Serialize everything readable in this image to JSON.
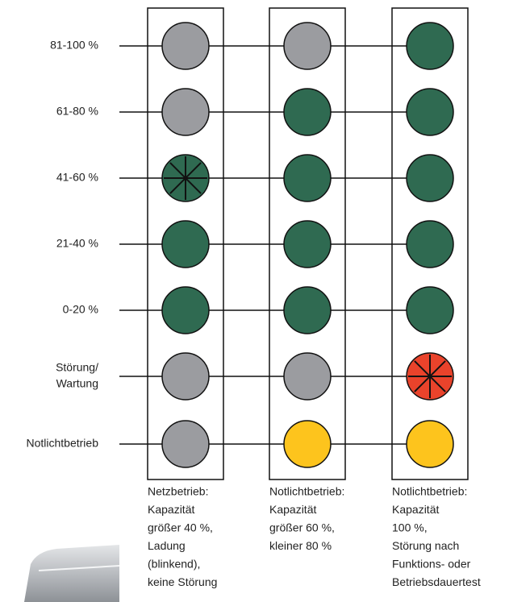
{
  "rows": [
    [
      "81-100 %"
    ],
    [
      "61-80 %"
    ],
    [
      "41-60 %"
    ],
    [
      "21-40 %"
    ],
    [
      "0-20 %"
    ],
    [
      "Störung/",
      "Wartung"
    ],
    [
      "Notlichtbetrieb"
    ]
  ],
  "columns": [
    {
      "lamps": [
        "#9b9ca0",
        "#9b9ca0",
        "#2f6a51",
        "#2f6a51",
        "#2f6a51",
        "#9b9ca0",
        "#9b9ca0"
      ],
      "blinking": [
        2
      ],
      "caption": [
        "Netzbetrieb:",
        "Kapazität",
        "größer 40 %,",
        "Ladung",
        "(blinkend),",
        "keine Störung"
      ]
    },
    {
      "lamps": [
        "#9b9ca0",
        "#2f6a51",
        "#2f6a51",
        "#2f6a51",
        "#2f6a51",
        "#9b9ca0",
        "#fdc41d"
      ],
      "blinking": [],
      "caption": [
        "Notlichtbetrieb:",
        "Kapazität",
        "größer 60 %,",
        "kleiner 80 %"
      ]
    },
    {
      "lamps": [
        "#2f6a51",
        "#2f6a51",
        "#2f6a51",
        "#2f6a51",
        "#2f6a51",
        "#e9432b",
        "#fdc41d"
      ],
      "blinking": [
        5
      ],
      "caption": [
        "Notlichtbetrieb:",
        "Kapazität",
        "100 %,",
        "Störung nach",
        "Funktions- oder",
        "Betriebsdauertest"
      ]
    }
  ]
}
